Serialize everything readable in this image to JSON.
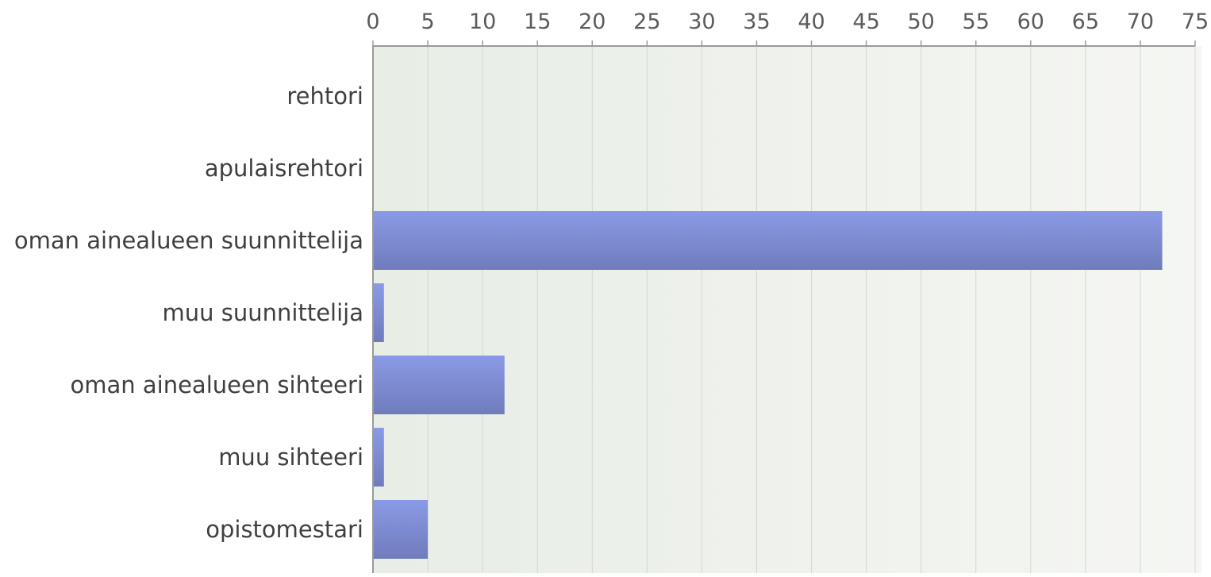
{
  "chart_data": {
    "type": "bar",
    "orientation": "horizontal",
    "title": "",
    "xlabel": "",
    "ylabel": "",
    "categories": [
      "rehtori",
      "apulaisrehtori",
      "oman ainealueen suunnittelija",
      "muu suunnittelija",
      "oman ainealueen sihteeri",
      "muu sihteeri",
      "opistomestari"
    ],
    "values": [
      0,
      0,
      72,
      1,
      12,
      1,
      5
    ],
    "xlim": [
      0,
      75
    ],
    "x_ticks": [
      0,
      5,
      10,
      15,
      20,
      25,
      30,
      35,
      40,
      45,
      50,
      55,
      60,
      65,
      70,
      75
    ],
    "x_axis_position": "top",
    "grid": true,
    "legend": "none",
    "colors": {
      "bar_top": "#8a9ae6",
      "bar_bottom": "#6f7cbc",
      "plot_bg_left": "#e8ede6",
      "plot_bg_right": "#f5f6f3",
      "grid": "#d3d8d1",
      "axis": "#9a9a9a"
    }
  }
}
